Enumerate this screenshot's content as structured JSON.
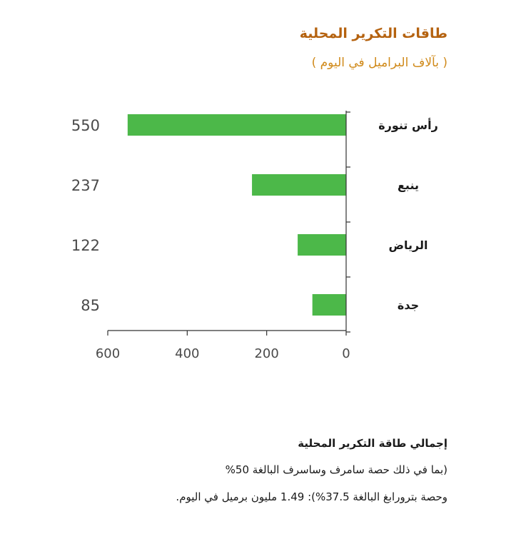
{
  "chart_data": {
    "type": "bar",
    "orientation": "horizontal",
    "title": "طاقات التكرير المحلية",
    "subtitle": "( بآلاف البراميل في اليوم )",
    "categories": [
      "رأس تنورة",
      "ينبع",
      "الرياض",
      "جدة"
    ],
    "values": [
      550,
      237,
      122,
      85
    ],
    "value_labels": [
      "550",
      "237",
      "122",
      "85"
    ],
    "xlim": [
      0,
      600
    ],
    "x_ticks": [
      600,
      400,
      200,
      0
    ],
    "x_reversed": true,
    "grid": false,
    "bar_color": "#4cb849",
    "axis_color": "#333333"
  },
  "footnote": {
    "line1": "إجمالي طاقة التكرير المحلية",
    "line2": "(بما في ذلك حصة سامرف وساسرف البالغة 50%",
    "line3": "وحصة بترورابغ البالغة 37.5%): 1.49 مليون برميل في اليوم."
  }
}
